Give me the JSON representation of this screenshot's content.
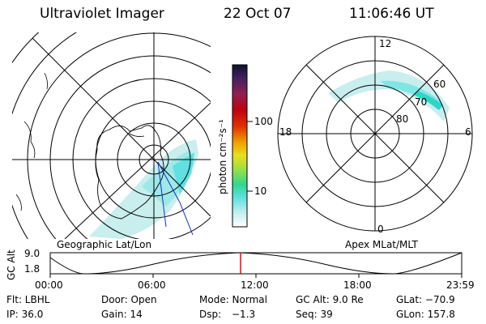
{
  "header": {
    "instrument": "Ultraviolet Imager",
    "date": "22 Oct 07",
    "time": "11:06:46 UT"
  },
  "colorbar": {
    "unit_label": "photon cm⁻²s⁻¹",
    "ticks": [
      "100",
      "10"
    ]
  },
  "left_map": {
    "caption": "Geographic Lat/Lon"
  },
  "right_map": {
    "caption": "Apex MLat/MLT",
    "mlt_labels": [
      "12",
      "18",
      "6",
      "0"
    ],
    "lat_labels": [
      "60",
      "70",
      "80"
    ]
  },
  "timeline": {
    "ylabel": "GC Alt",
    "y_ticks": [
      "9.0",
      "1.8"
    ],
    "x_ticks": [
      "00:00",
      "06:00",
      "12:00",
      "18:00",
      "23:59"
    ]
  },
  "footer": {
    "filter": "Flt: LBHL",
    "door": "Door: Open",
    "mode": "Mode: Normal",
    "gc_alt": "GC Alt: 9.0 Re",
    "glat": "GLat: −70.9",
    "ip": "IP: 36.0",
    "gain": "Gain: 14",
    "dsp_label": "Dsp:",
    "dsp_value": "−1.3",
    "seq": "Seq: 39",
    "glon": "GLon: 157.8"
  },
  "colors": {
    "aurora_low": "#c8eeee",
    "aurora_mid": "#7fe6e6",
    "aurora_high": "#2fd6c8",
    "marker": "#ff0000"
  }
}
